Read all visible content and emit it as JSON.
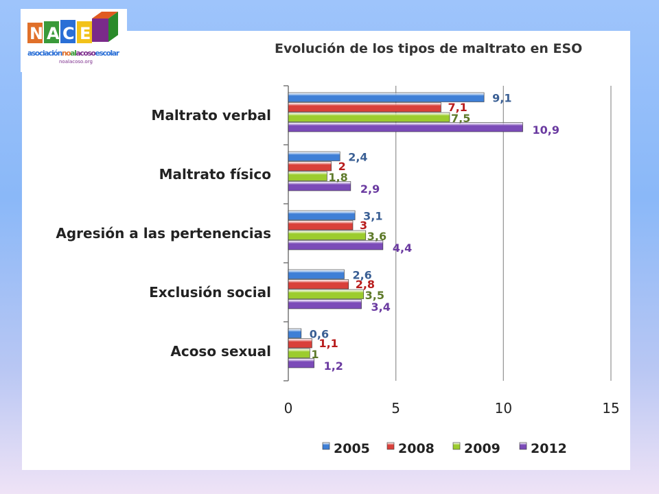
{
  "logo": {
    "letters": "NACE",
    "name": "asociaciónnoalacosoescolar",
    "url": "noalacoso.org"
  },
  "chart_data": {
    "type": "bar",
    "orientation": "horizontal",
    "title": "Evolución de los tipos de maltrato en ESO",
    "categories": [
      "Maltrato verbal",
      "Maltrato físico",
      "Agresión a las pertenencias",
      "Exclusión social",
      "Acoso sexual"
    ],
    "series": [
      {
        "name": "2005",
        "color": "#3f7fd6",
        "values": [
          9.1,
          2.4,
          3.1,
          2.6,
          0.6
        ],
        "labels": [
          "9,1",
          "2,4",
          "3,1",
          "2,6",
          "0,6"
        ]
      },
      {
        "name": "2008",
        "color": "#d9403a",
        "values": [
          7.1,
          2,
          3,
          2.8,
          1.1
        ],
        "labels": [
          "7,1",
          "2",
          "3",
          "2,8",
          "1,1"
        ]
      },
      {
        "name": "2009",
        "color": "#9ccc2e",
        "values": [
          7.5,
          1.8,
          3.6,
          3.5,
          1
        ],
        "labels": [
          "7,5",
          "1,8",
          "3,6",
          "3,5",
          "1"
        ]
      },
      {
        "name": "2012",
        "color": "#7b4bb8",
        "values": [
          10.9,
          2.9,
          4.4,
          3.4,
          1.2
        ],
        "labels": [
          "10,9",
          "2,9",
          "4,4",
          "3,4",
          "1,2"
        ]
      }
    ],
    "label_colors": [
      "#3a5f94",
      "#b81c1c",
      "#5e7a2a",
      "#6a3aa0"
    ],
    "xlim": [
      0,
      15
    ],
    "xticks": [
      "0",
      "5",
      "10",
      "15"
    ],
    "grid": true,
    "legend": "bottom"
  }
}
